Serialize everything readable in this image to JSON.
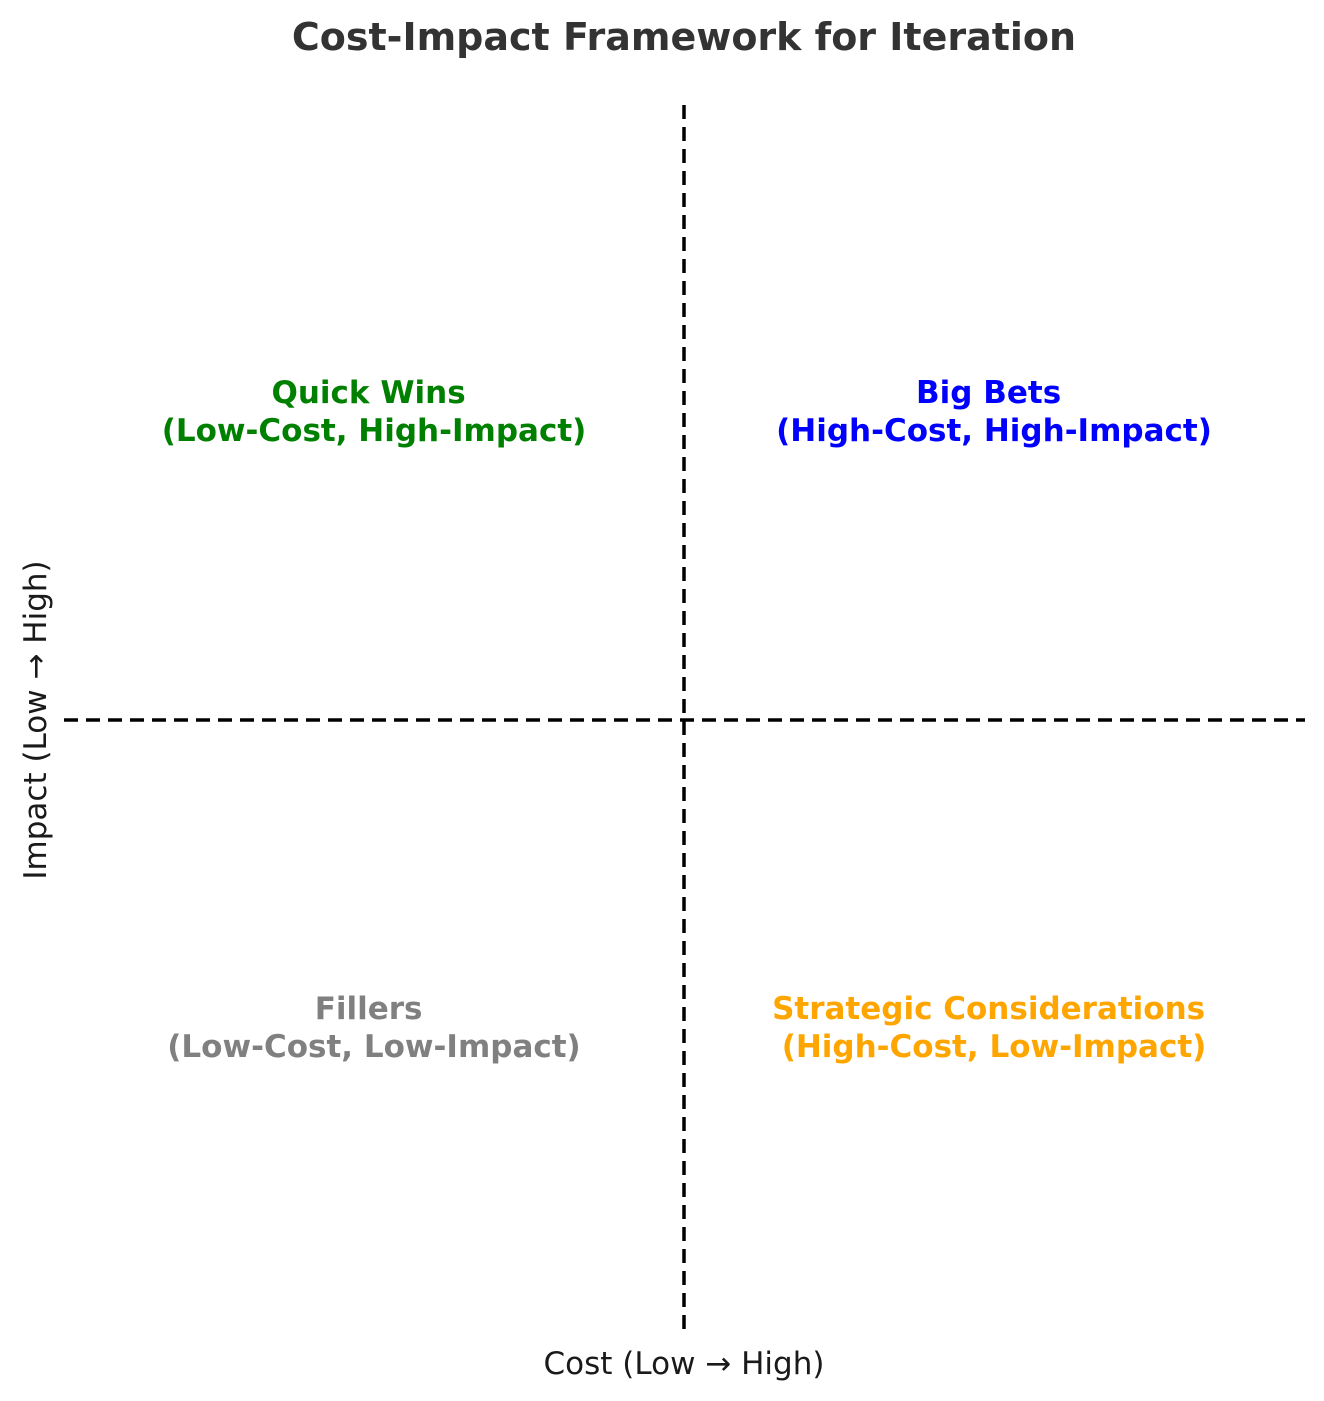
{
  "chart_data": {
    "type": "quadrant",
    "title": "Cost-Impact Framework for Iteration",
    "xlabel": "Cost (Low → High)",
    "ylabel": "Impact (Low → High)",
    "quadrants": [
      {
        "position": "top-left",
        "name": "Quick Wins",
        "description": "(Low-Cost, High-Impact)",
        "color": "#008000"
      },
      {
        "position": "top-right",
        "name": "Big Bets",
        "description": "(High-Cost, High-Impact)",
        "color": "#0000ff"
      },
      {
        "position": "bottom-left",
        "name": "Fillers",
        "description": "(Low-Cost, Low-Impact)",
        "color": "#808080"
      },
      {
        "position": "bottom-right",
        "name": "Strategic Considerations",
        "description": "(High-Cost, Low-Impact)",
        "color": "#ffa500"
      }
    ],
    "grid": false,
    "divider_style": "dashed"
  }
}
